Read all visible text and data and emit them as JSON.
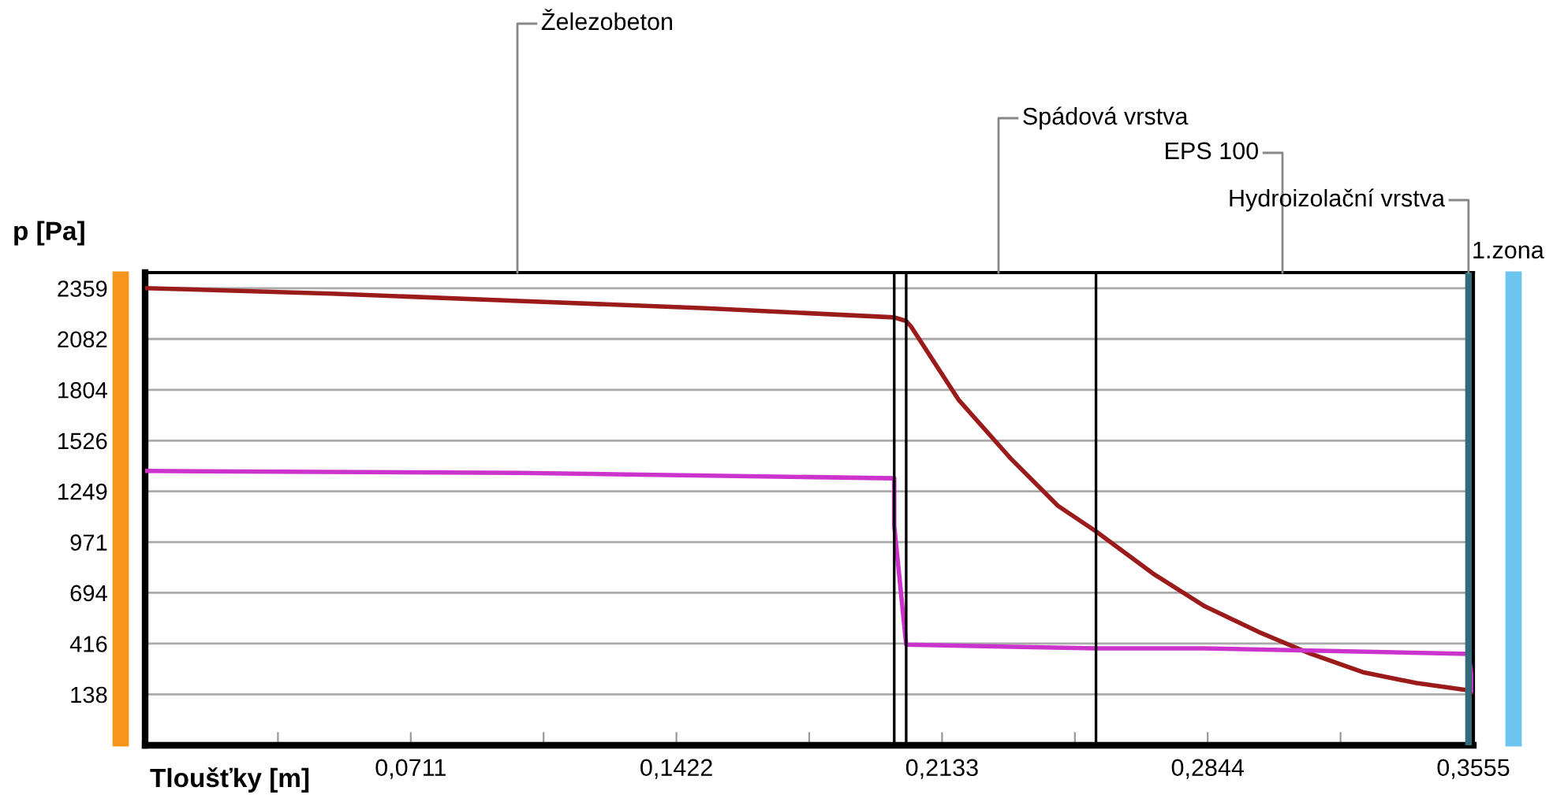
{
  "chart_data": {
    "type": "line",
    "xlabel": "Tloušťky [m]",
    "ylabel": "p [Pa]",
    "xlim": [
      0,
      0.3555
    ],
    "ylim": [
      -140,
      2445
    ],
    "xticks": [
      {
        "value": 0.03555,
        "label": null
      },
      {
        "value": 0.0711,
        "label": "0,0711"
      },
      {
        "value": 0.10665,
        "label": null
      },
      {
        "value": 0.1422,
        "label": "0,1422"
      },
      {
        "value": 0.17775,
        "label": null
      },
      {
        "value": 0.2133,
        "label": "0,2133"
      },
      {
        "value": 0.24885,
        "label": null
      },
      {
        "value": 0.2844,
        "label": "0,2844"
      },
      {
        "value": 0.31995,
        "label": null
      },
      {
        "value": 0.3555,
        "label": "0,3555"
      }
    ],
    "yticks": [
      138,
      416,
      694,
      971,
      1249,
      1526,
      1804,
      2082,
      2359
    ],
    "grid": "y",
    "marker": "none",
    "line_style": "solid",
    "series": [
      {
        "color": "#9b1b1b",
        "x": [
          0,
          0.05,
          0.1,
          0.15,
          0.2005,
          0.2037,
          0.205,
          0.2177,
          0.2316,
          0.2443,
          0.2545,
          0.2697,
          0.2836,
          0.298,
          0.312,
          0.3259,
          0.3403,
          0.3542,
          0.3555
        ],
        "values": [
          2360,
          2330,
          2290,
          2250,
          2200,
          2180,
          2150,
          1750,
          1430,
          1170,
          1030,
          800,
          620,
          480,
          360,
          260,
          200,
          160,
          150
        ]
      },
      {
        "color": "#cc33cc",
        "x": [
          0,
          0.1,
          0.2005,
          0.2005,
          0.2037,
          0.2545,
          0.2836,
          0.3542,
          0.3555
        ],
        "values": [
          1360,
          1350,
          1320,
          1060,
          410,
          390,
          390,
          360,
          160
        ]
      }
    ],
    "ref_lines": [
      {
        "axis": "x",
        "value": 0.2005,
        "color": "#000000"
      },
      {
        "axis": "x",
        "value": 0.2037,
        "color": "#000000"
      },
      {
        "axis": "x",
        "value": 0.2545,
        "color": "#000000"
      },
      {
        "axis": "x",
        "value": 0.3542,
        "color": "#336b7a"
      }
    ],
    "annotations": [
      "Železobeton",
      "Spádová vrstva",
      "EPS 100",
      {
        "text": "Hydroizolační vrstva",
        "x": 0.3542,
        "y": 2445
      },
      "1.zona"
    ]
  }
}
